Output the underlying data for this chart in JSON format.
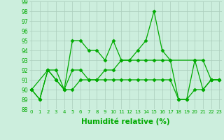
{
  "series1_x": [
    0,
    1,
    2,
    3,
    4,
    5,
    6,
    7,
    8,
    9,
    10,
    11,
    12,
    13,
    14,
    15,
    16,
    17,
    18,
    19,
    20,
    21,
    22,
    23
  ],
  "series1_y": [
    90,
    89,
    92,
    91,
    90,
    95,
    95,
    94,
    94,
    93,
    95,
    93,
    93,
    94,
    95,
    98,
    94,
    93,
    89,
    89,
    93,
    90,
    91,
    91
  ],
  "series2_x": [
    0,
    2,
    3,
    4,
    5,
    6,
    7,
    8,
    9,
    10,
    11,
    12,
    13,
    14,
    15,
    16,
    17,
    20,
    21,
    22,
    23
  ],
  "series2_y": [
    90,
    92,
    92,
    90,
    92,
    92,
    91,
    91,
    92,
    92,
    93,
    93,
    93,
    93,
    93,
    93,
    93,
    93,
    93,
    91,
    91
  ],
  "series3_x": [
    0,
    1,
    2,
    3,
    4,
    5,
    6,
    7,
    8,
    9,
    10,
    11,
    12,
    13,
    14,
    15,
    16,
    17,
    18,
    19,
    20,
    21,
    22,
    23
  ],
  "series3_y": [
    90,
    89,
    92,
    91,
    90,
    90,
    91,
    91,
    91,
    91,
    91,
    91,
    91,
    91,
    91,
    91,
    91,
    91,
    89,
    89,
    90,
    90,
    91,
    91
  ],
  "line_color": "#00aa00",
  "marker": "D",
  "marker_size": 2.5,
  "lw": 0.9,
  "bg_color": "#cceedd",
  "grid_color": "#aaccbb",
  "xlabel": "Humidité relative (%)",
  "ylim": [
    88,
    99
  ],
  "xlim": [
    -0.3,
    23.3
  ],
  "yticks": [
    88,
    89,
    90,
    91,
    92,
    93,
    94,
    95,
    96,
    97,
    98,
    99
  ],
  "xticks": [
    0,
    1,
    2,
    3,
    4,
    5,
    6,
    7,
    8,
    9,
    10,
    11,
    12,
    13,
    14,
    15,
    16,
    17,
    18,
    19,
    20,
    21,
    22,
    23
  ],
  "xtick_labels": [
    "0",
    "1",
    "2",
    "3",
    "4",
    "5",
    "6",
    "7",
    "8",
    "9",
    "10",
    "11",
    "12",
    "13",
    "14",
    "15",
    "16",
    "17",
    "18",
    "19",
    "20",
    "21",
    "22",
    "23"
  ],
  "ytick_fontsize": 5.5,
  "xtick_fontsize": 5.0,
  "xlabel_fontsize": 7.5
}
